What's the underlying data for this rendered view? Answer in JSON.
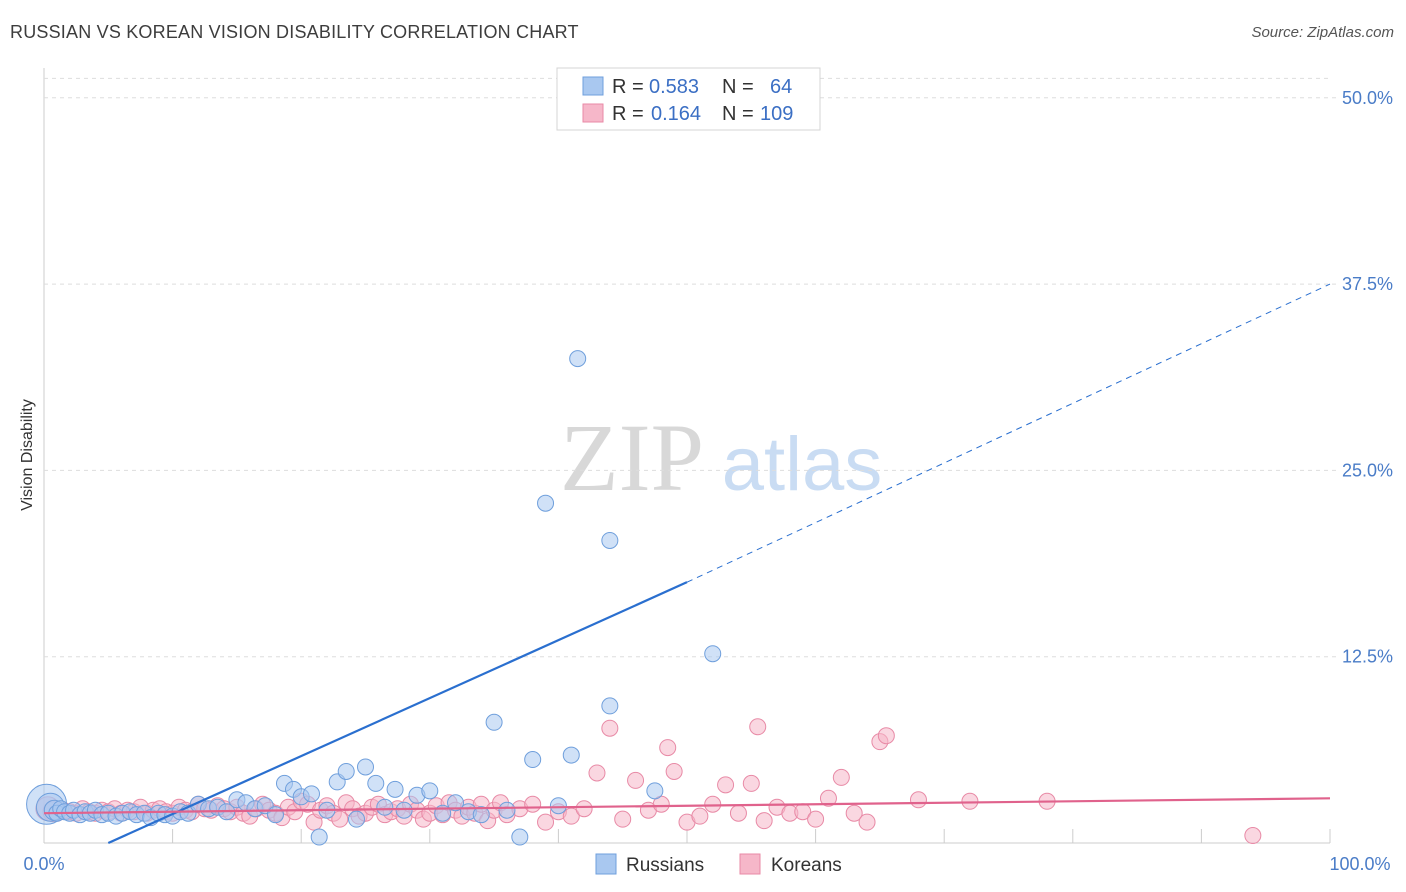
{
  "title": "RUSSIAN VS KOREAN VISION DISABILITY CORRELATION CHART",
  "source": "Source: ZipAtlas.com",
  "watermark": {
    "zip": "ZIP",
    "atlas": "atlas"
  },
  "colors": {
    "russians_fill": "#a9c8f0",
    "russians_stroke": "#6f9fdc",
    "russians_line": "#2a6fcf",
    "koreans_fill": "#f6b7c9",
    "koreans_stroke": "#e88aa6",
    "koreans_line": "#e0628c",
    "grid": "#dddddd",
    "tick_text": "#4a7cc7"
  },
  "legend": {
    "rows": [
      {
        "r_label": "R =",
        "r_value": "0.583",
        "n_label": "N =",
        "n_value": "64"
      },
      {
        "r_label": "R =",
        "r_value": "0.164",
        "n_label": "N =",
        "n_value": "109"
      }
    ]
  },
  "chart_data": {
    "type": "scatter",
    "title": "RUSSIAN VS KOREAN VISION DISABILITY CORRELATION CHART",
    "xlabel": "",
    "ylabel": "Vision Disability",
    "xlim": [
      0,
      100
    ],
    "ylim": [
      0,
      52
    ],
    "x_tick_labels": [
      "0.0%",
      "100.0%"
    ],
    "y_ticks": [
      12.5,
      25.0,
      37.5,
      50.0
    ],
    "y_tick_labels": [
      "12.5%",
      "25.0%",
      "37.5%",
      "50.0%"
    ],
    "grid": true,
    "legend_position": "bottom",
    "series": [
      {
        "name": "Russians",
        "r": 0.583,
        "n": 64,
        "trend": {
          "x0": 5,
          "y0": 0,
          "x1": 50,
          "y1": 17.5,
          "x_dash_end": 100,
          "y_dash_end": 37.5
        },
        "points": [
          [
            0.2,
            2.6,
            20
          ],
          [
            0.5,
            2.4,
            14
          ],
          [
            0.8,
            2.2,
            10
          ],
          [
            1.0,
            2.0,
            8
          ],
          [
            1.3,
            2.3,
            8
          ],
          [
            1.6,
            2.1,
            8
          ],
          [
            2.0,
            2.0,
            8
          ],
          [
            2.3,
            2.2,
            8
          ],
          [
            2.8,
            1.9,
            8
          ],
          [
            3.2,
            2.1,
            8
          ],
          [
            3.6,
            2.0,
            8
          ],
          [
            4.0,
            2.2,
            8
          ],
          [
            4.5,
            1.9,
            8
          ],
          [
            5.0,
            2.0,
            8
          ],
          [
            5.6,
            1.8,
            8
          ],
          [
            6.1,
            2.0,
            8
          ],
          [
            6.7,
            2.1,
            8
          ],
          [
            7.2,
            1.9,
            8
          ],
          [
            7.8,
            2.0,
            8
          ],
          [
            8.3,
            1.7,
            8
          ],
          [
            8.9,
            2.0,
            8
          ],
          [
            9.4,
            1.9,
            8
          ],
          [
            10.0,
            1.8,
            8
          ],
          [
            10.6,
            2.1,
            8
          ],
          [
            11.2,
            2.0,
            8
          ],
          [
            12.0,
            2.6,
            8
          ],
          [
            12.8,
            2.3,
            8
          ],
          [
            13.5,
            2.4,
            8
          ],
          [
            14.2,
            2.1,
            8
          ],
          [
            15.0,
            2.9,
            8
          ],
          [
            15.7,
            2.7,
            8
          ],
          [
            16.4,
            2.3,
            8
          ],
          [
            17.2,
            2.5,
            8
          ],
          [
            18.0,
            1.9,
            8
          ],
          [
            18.7,
            4.0,
            8
          ],
          [
            19.4,
            3.6,
            8
          ],
          [
            20.0,
            3.1,
            8
          ],
          [
            20.8,
            3.3,
            8
          ],
          [
            21.4,
            0.4,
            8
          ],
          [
            22.0,
            2.2,
            8
          ],
          [
            22.8,
            4.1,
            8
          ],
          [
            23.5,
            4.8,
            8
          ],
          [
            24.3,
            1.6,
            8
          ],
          [
            25.0,
            5.1,
            8
          ],
          [
            25.8,
            4.0,
            8
          ],
          [
            26.5,
            2.4,
            8
          ],
          [
            27.3,
            3.6,
            8
          ],
          [
            28.0,
            2.2,
            8
          ],
          [
            29.0,
            3.2,
            8
          ],
          [
            30.0,
            3.5,
            8
          ],
          [
            31.0,
            2.0,
            8
          ],
          [
            32.0,
            2.7,
            8
          ],
          [
            33.0,
            2.1,
            8
          ],
          [
            34.0,
            1.9,
            8
          ],
          [
            35.0,
            8.1,
            8
          ],
          [
            36.0,
            2.2,
            8
          ],
          [
            37.0,
            0.4,
            8
          ],
          [
            38.0,
            5.6,
            8
          ],
          [
            39.0,
            22.8,
            8
          ],
          [
            40.0,
            2.5,
            8
          ],
          [
            41.0,
            5.9,
            8
          ],
          [
            41.5,
            32.5,
            8
          ],
          [
            44.0,
            20.3,
            8
          ],
          [
            44.0,
            9.2,
            8
          ],
          [
            47.5,
            3.5,
            8
          ],
          [
            52.0,
            12.7,
            8
          ]
        ]
      },
      {
        "name": "Koreans",
        "r": 0.164,
        "n": 109,
        "trend": {
          "x0": 0,
          "y0": 2.0,
          "x1": 100,
          "y1": 3.0
        },
        "points": [
          [
            0.3,
            2.3,
            12
          ],
          [
            0.7,
            2.1,
            10
          ],
          [
            1.0,
            2.0,
            8
          ],
          [
            1.5,
            2.2,
            8
          ],
          [
            2.0,
            2.1,
            8
          ],
          [
            2.5,
            2.0,
            8
          ],
          [
            3.0,
            2.3,
            8
          ],
          [
            3.5,
            2.1,
            8
          ],
          [
            4.0,
            2.0,
            8
          ],
          [
            4.5,
            2.2,
            8
          ],
          [
            5.0,
            2.1,
            8
          ],
          [
            5.5,
            2.3,
            8
          ],
          [
            6.0,
            2.0,
            8
          ],
          [
            6.5,
            2.2,
            8
          ],
          [
            7.0,
            2.1,
            8
          ],
          [
            7.5,
            2.4,
            8
          ],
          [
            8.0,
            2.0,
            8
          ],
          [
            8.5,
            2.2,
            8
          ],
          [
            9.0,
            2.3,
            8
          ],
          [
            9.5,
            2.1,
            8
          ],
          [
            10.0,
            2.0,
            8
          ],
          [
            10.5,
            2.4,
            8
          ],
          [
            11.0,
            2.2,
            8
          ],
          [
            11.5,
            2.1,
            8
          ],
          [
            12.0,
            2.6,
            8
          ],
          [
            12.5,
            2.3,
            8
          ],
          [
            13.0,
            2.2,
            8
          ],
          [
            13.5,
            2.5,
            8
          ],
          [
            14.0,
            2.3,
            8
          ],
          [
            14.5,
            2.1,
            8
          ],
          [
            15.0,
            2.4,
            8
          ],
          [
            15.5,
            2.0,
            8
          ],
          [
            16.0,
            1.8,
            8
          ],
          [
            16.5,
            2.3,
            8
          ],
          [
            17.0,
            2.6,
            8
          ],
          [
            17.5,
            2.2,
            8
          ],
          [
            18.0,
            2.0,
            8
          ],
          [
            18.5,
            1.7,
            8
          ],
          [
            19.0,
            2.4,
            8
          ],
          [
            19.5,
            2.1,
            8
          ],
          [
            20.0,
            2.8,
            8
          ],
          [
            20.5,
            2.6,
            8
          ],
          [
            21.0,
            1.4,
            8
          ],
          [
            21.5,
            2.2,
            8
          ],
          [
            22.0,
            2.5,
            8
          ],
          [
            22.5,
            2.0,
            8
          ],
          [
            23.0,
            1.6,
            8
          ],
          [
            23.5,
            2.7,
            8
          ],
          [
            24.0,
            2.3,
            8
          ],
          [
            24.5,
            1.8,
            8
          ],
          [
            25.0,
            2.0,
            8
          ],
          [
            25.5,
            2.4,
            8
          ],
          [
            26.0,
            2.6,
            8
          ],
          [
            26.5,
            1.9,
            8
          ],
          [
            27.0,
            2.1,
            8
          ],
          [
            27.5,
            2.3,
            8
          ],
          [
            28.0,
            1.8,
            8
          ],
          [
            28.5,
            2.6,
            8
          ],
          [
            29.0,
            2.2,
            8
          ],
          [
            29.5,
            1.6,
            8
          ],
          [
            30.0,
            2.0,
            8
          ],
          [
            30.5,
            2.5,
            8
          ],
          [
            31.0,
            1.9,
            8
          ],
          [
            31.5,
            2.7,
            8
          ],
          [
            32.0,
            2.2,
            8
          ],
          [
            32.5,
            1.8,
            8
          ],
          [
            33.0,
            2.4,
            8
          ],
          [
            33.5,
            2.0,
            8
          ],
          [
            34.0,
            2.6,
            8
          ],
          [
            34.5,
            1.5,
            8
          ],
          [
            35.0,
            2.2,
            8
          ],
          [
            35.5,
            2.7,
            8
          ],
          [
            36.0,
            1.9,
            8
          ],
          [
            37.0,
            2.3,
            8
          ],
          [
            38.0,
            2.6,
            8
          ],
          [
            39.0,
            1.4,
            8
          ],
          [
            40.0,
            2.1,
            8
          ],
          [
            41.0,
            1.8,
            8
          ],
          [
            42.0,
            2.3,
            8
          ],
          [
            43.0,
            4.7,
            8
          ],
          [
            44.0,
            7.7,
            8
          ],
          [
            45.0,
            1.6,
            8
          ],
          [
            46.0,
            4.2,
            8
          ],
          [
            47.0,
            2.2,
            8
          ],
          [
            48.0,
            2.6,
            8
          ],
          [
            48.5,
            6.4,
            8
          ],
          [
            49.0,
            4.8,
            8
          ],
          [
            50.0,
            1.4,
            8
          ],
          [
            51.0,
            1.8,
            8
          ],
          [
            52.0,
            2.6,
            8
          ],
          [
            53.0,
            3.9,
            8
          ],
          [
            54.0,
            2.0,
            8
          ],
          [
            55.0,
            4.0,
            8
          ],
          [
            55.5,
            7.8,
            8
          ],
          [
            56.0,
            1.5,
            8
          ],
          [
            57.0,
            2.4,
            8
          ],
          [
            58.0,
            2.0,
            8
          ],
          [
            59.0,
            2.1,
            8
          ],
          [
            60.0,
            1.6,
            8
          ],
          [
            61.0,
            3.0,
            8
          ],
          [
            62.0,
            4.4,
            8
          ],
          [
            63.0,
            2.0,
            8
          ],
          [
            64.0,
            1.4,
            8
          ],
          [
            65.0,
            6.8,
            8
          ],
          [
            65.5,
            7.2,
            8
          ],
          [
            68.0,
            2.9,
            8
          ],
          [
            72.0,
            2.8,
            8
          ],
          [
            78.0,
            2.8,
            8
          ],
          [
            94.0,
            0.5,
            8
          ]
        ]
      }
    ]
  },
  "bottom_legend": [
    {
      "label": "Russians"
    },
    {
      "label": "Koreans"
    }
  ]
}
